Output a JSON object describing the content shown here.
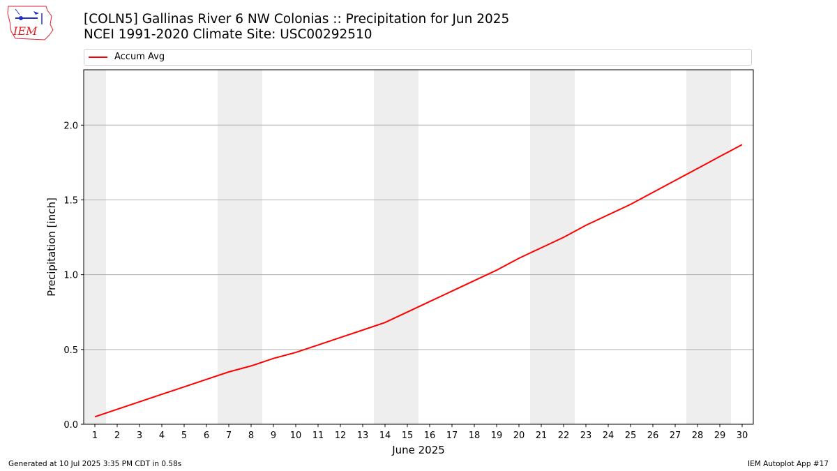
{
  "header": {
    "title_line1": "[COLN5] Gallinas River 6 NW Colonias :: Precipitation for Jun 2025",
    "title_line2": "NCEI 1991-2020 Climate Site: USC00292510"
  },
  "logo": {
    "text": "IEM",
    "icon": "iem-logo-icon"
  },
  "footer": {
    "generated": "Generated at 10 Jul 2025 3:35 PM CDT in 0.58s",
    "app": "IEM Autoplot App #17"
  },
  "chart_data": {
    "type": "line",
    "xlabel": "June 2025",
    "ylabel": "Precipitation [inch]",
    "legend": {
      "placement": "top-above-plot",
      "entries": [
        "Accum Avg"
      ]
    },
    "x": [
      1,
      2,
      3,
      4,
      5,
      6,
      7,
      8,
      9,
      10,
      11,
      12,
      13,
      14,
      15,
      16,
      17,
      18,
      19,
      20,
      21,
      22,
      23,
      24,
      25,
      26,
      27,
      28,
      29,
      30
    ],
    "series": [
      {
        "name": "Accum Avg",
        "color": "#ff0000",
        "values": [
          0.05,
          0.1,
          0.15,
          0.2,
          0.25,
          0.3,
          0.35,
          0.39,
          0.44,
          0.48,
          0.53,
          0.58,
          0.63,
          0.68,
          0.75,
          0.82,
          0.89,
          0.96,
          1.03,
          1.11,
          1.18,
          1.25,
          1.33,
          1.4,
          1.47,
          1.55,
          1.63,
          1.71,
          1.79,
          1.87
        ]
      }
    ],
    "xlim": [
      0.5,
      30.5
    ],
    "ylim": [
      0,
      2.37
    ],
    "yticks": [
      "0.0",
      "0.5",
      "1.0",
      "1.5",
      "2.0"
    ],
    "grid": "horizontal",
    "weekend_shading": {
      "color": "#eeeeee",
      "days": [
        1,
        7,
        8,
        14,
        15,
        21,
        22,
        28,
        29
      ]
    }
  }
}
